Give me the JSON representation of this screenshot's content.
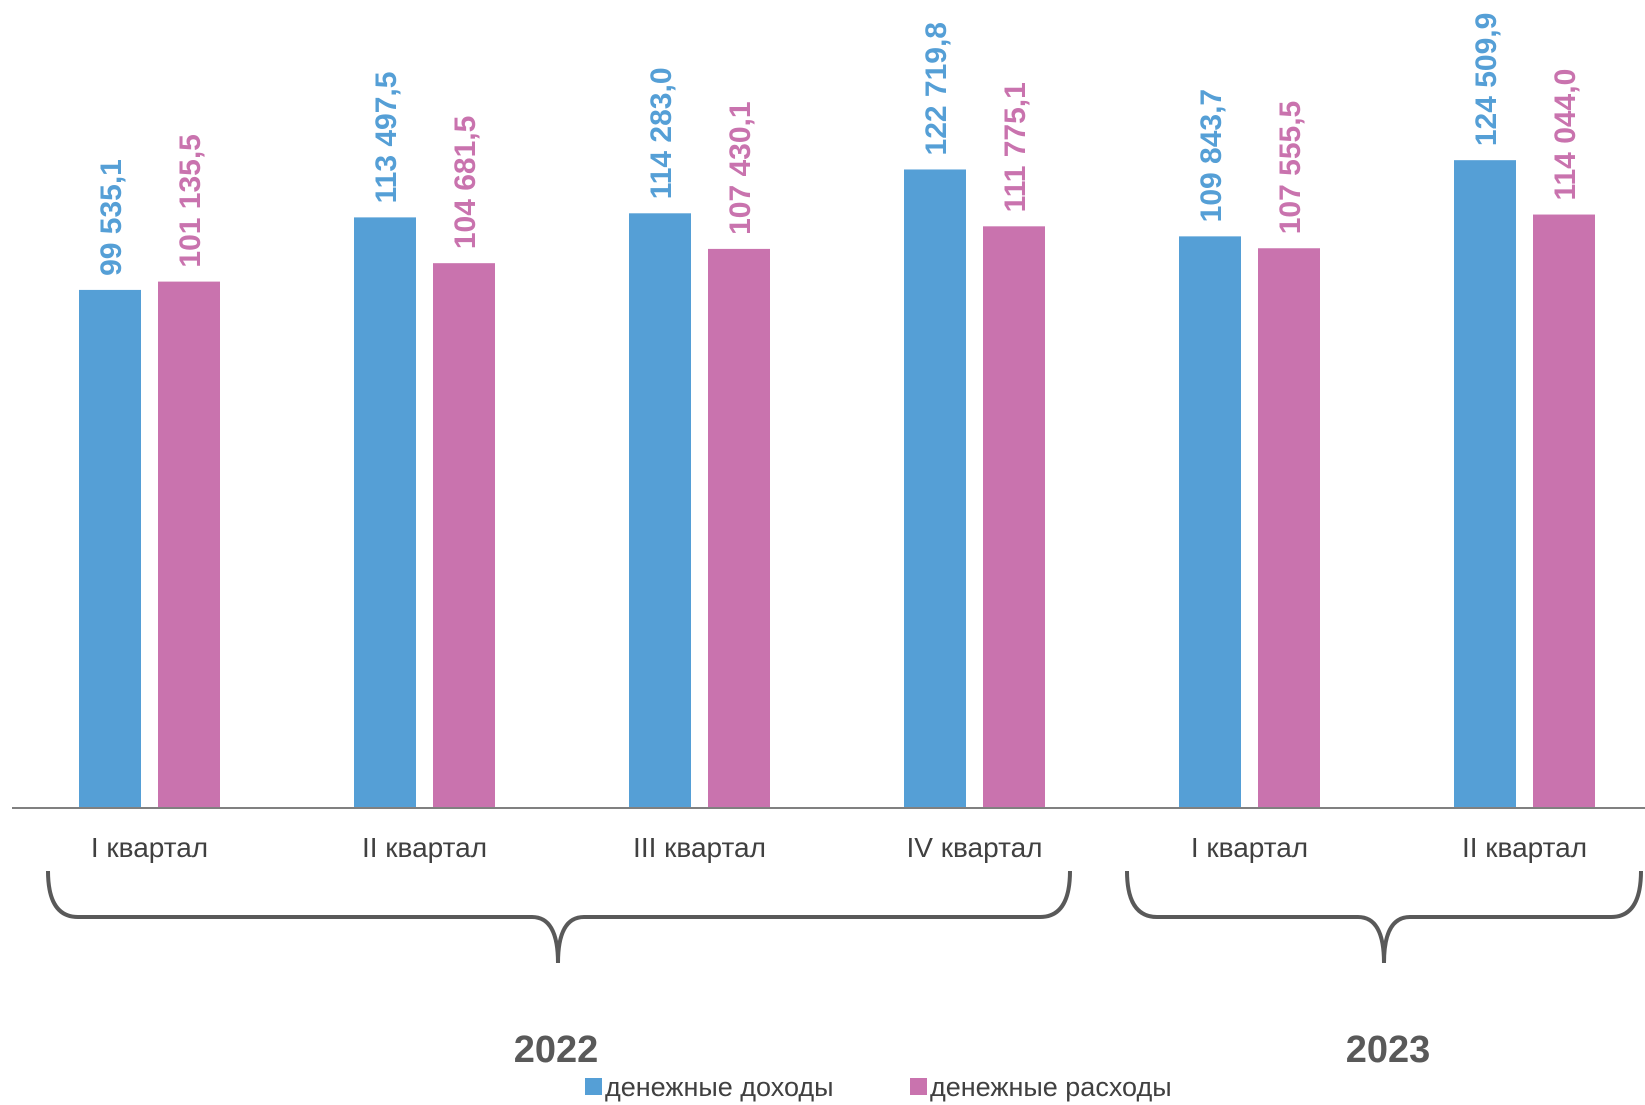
{
  "chart_data": {
    "type": "bar",
    "categories": [
      "I квартал",
      "II квартал",
      "III квартал",
      "IV квартал",
      "I квартал",
      "II квартал"
    ],
    "groups": [
      {
        "label": "2022",
        "from": 0,
        "to": 3
      },
      {
        "label": "2023",
        "from": 4,
        "to": 5
      }
    ],
    "series": [
      {
        "name": "денежные доходы",
        "color": "#559fd6",
        "values": [
          99535.1,
          113497.5,
          114283.0,
          122719.8,
          109843.7,
          124509.9
        ],
        "labels": [
          "99 535,1",
          "113 497,5",
          "114 283,0",
          "122 719,8",
          "109 843,7",
          "124 509,9"
        ]
      },
      {
        "name": "денежные расходы",
        "color": "#c973ae",
        "values": [
          101135.5,
          104681.5,
          107430.1,
          111775.1,
          107555.5,
          114044.0
        ],
        "labels": [
          "101 135,5",
          "104 681,5",
          "107 430,1",
          "111 775,1",
          "107 555,5",
          "114 044,0"
        ]
      }
    ],
    "ylim": [
      0,
      130000
    ],
    "grid": false,
    "legend_position": "bottom"
  }
}
